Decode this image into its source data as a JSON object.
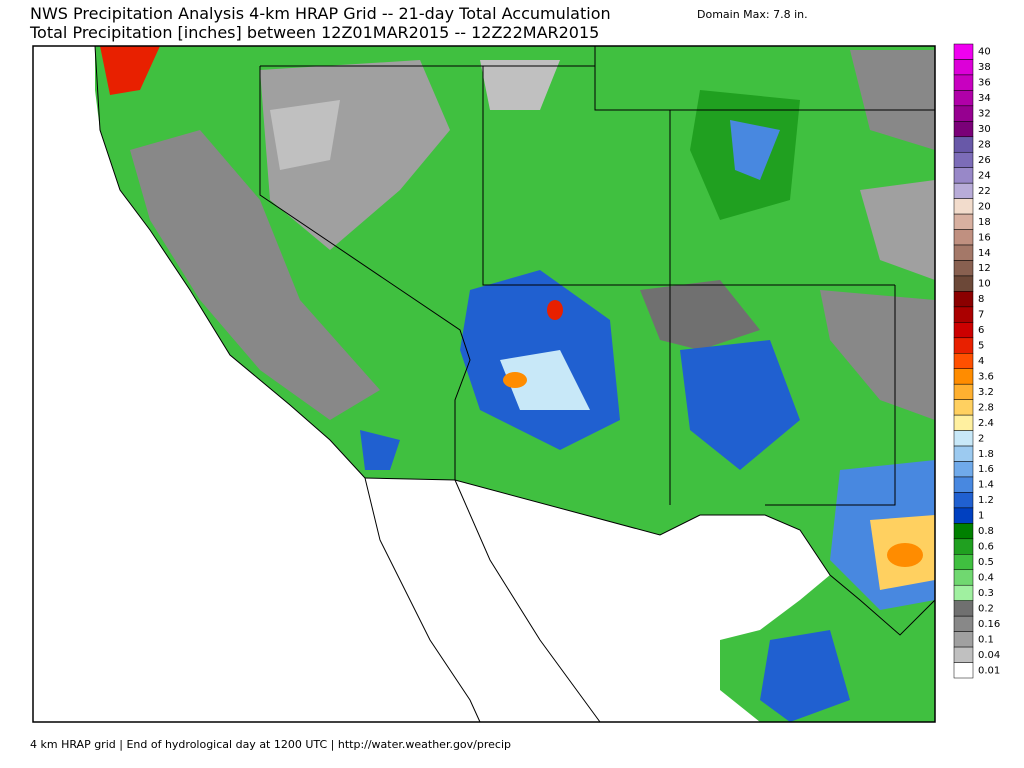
{
  "header": {
    "title": "NWS Precipitation Analysis 4-km HRAP Grid -- 21-day Total Accumulation",
    "subtitle": "Total Precipitation [inches] between 12Z01MAR2015 -- 12Z22MAR2015",
    "domain_max": "Domain Max:  7.8 in."
  },
  "legend": [
    {
      "label": "40",
      "color": "#f000f0"
    },
    {
      "label": "38",
      "color": "#dc00d8"
    },
    {
      "label": "36",
      "color": "#c800c0"
    },
    {
      "label": "34",
      "color": "#b000a8"
    },
    {
      "label": "32",
      "color": "#960090"
    },
    {
      "label": "30",
      "color": "#7a0078"
    },
    {
      "label": "28",
      "color": "#6858a8"
    },
    {
      "label": "26",
      "color": "#7c6cb8"
    },
    {
      "label": "24",
      "color": "#9888c8"
    },
    {
      "label": "22",
      "color": "#b8acd8"
    },
    {
      "label": "20",
      "color": "#f2dccc"
    },
    {
      "label": "18",
      "color": "#d8b0a0"
    },
    {
      "label": "16",
      "color": "#c09080"
    },
    {
      "label": "14",
      "color": "#a47868"
    },
    {
      "label": "12",
      "color": "#886050"
    },
    {
      "label": "10",
      "color": "#6c4838"
    },
    {
      "label": "8",
      "color": "#8b0000"
    },
    {
      "label": "7",
      "color": "#aa0000"
    },
    {
      "label": "6",
      "color": "#cc0000"
    },
    {
      "label": "5",
      "color": "#e82000"
    },
    {
      "label": "4",
      "color": "#ff5000"
    },
    {
      "label": "3.6",
      "color": "#ff8c00"
    },
    {
      "label": "3.2",
      "color": "#ffb030"
    },
    {
      "label": "2.8",
      "color": "#ffd060"
    },
    {
      "label": "2.4",
      "color": "#fff0a0"
    },
    {
      "label": "2",
      "color": "#c8e8f8"
    },
    {
      "label": "1.8",
      "color": "#9ccaf0"
    },
    {
      "label": "1.6",
      "color": "#70aaea"
    },
    {
      "label": "1.4",
      "color": "#4888e0"
    },
    {
      "label": "1.2",
      "color": "#2060d0"
    },
    {
      "label": "1",
      "color": "#0040c0"
    },
    {
      "label": "0.8",
      "color": "#008000"
    },
    {
      "label": "0.6",
      "color": "#20a020"
    },
    {
      "label": "0.5",
      "color": "#40c040"
    },
    {
      "label": "0.4",
      "color": "#70d870"
    },
    {
      "label": "0.3",
      "color": "#a0f0a0"
    },
    {
      "label": "0.2",
      "color": "#707070"
    },
    {
      "label": "0.16",
      "color": "#888888"
    },
    {
      "label": "0.1",
      "color": "#a0a0a0"
    },
    {
      "label": "0.04",
      "color": "#c0c0c0"
    },
    {
      "label": "0.01",
      "color": "#ffffff"
    }
  ],
  "footer": "4 km HRAP grid | End of hydrological day at 1200 UTC | http://water.weather.gov/precip"
}
